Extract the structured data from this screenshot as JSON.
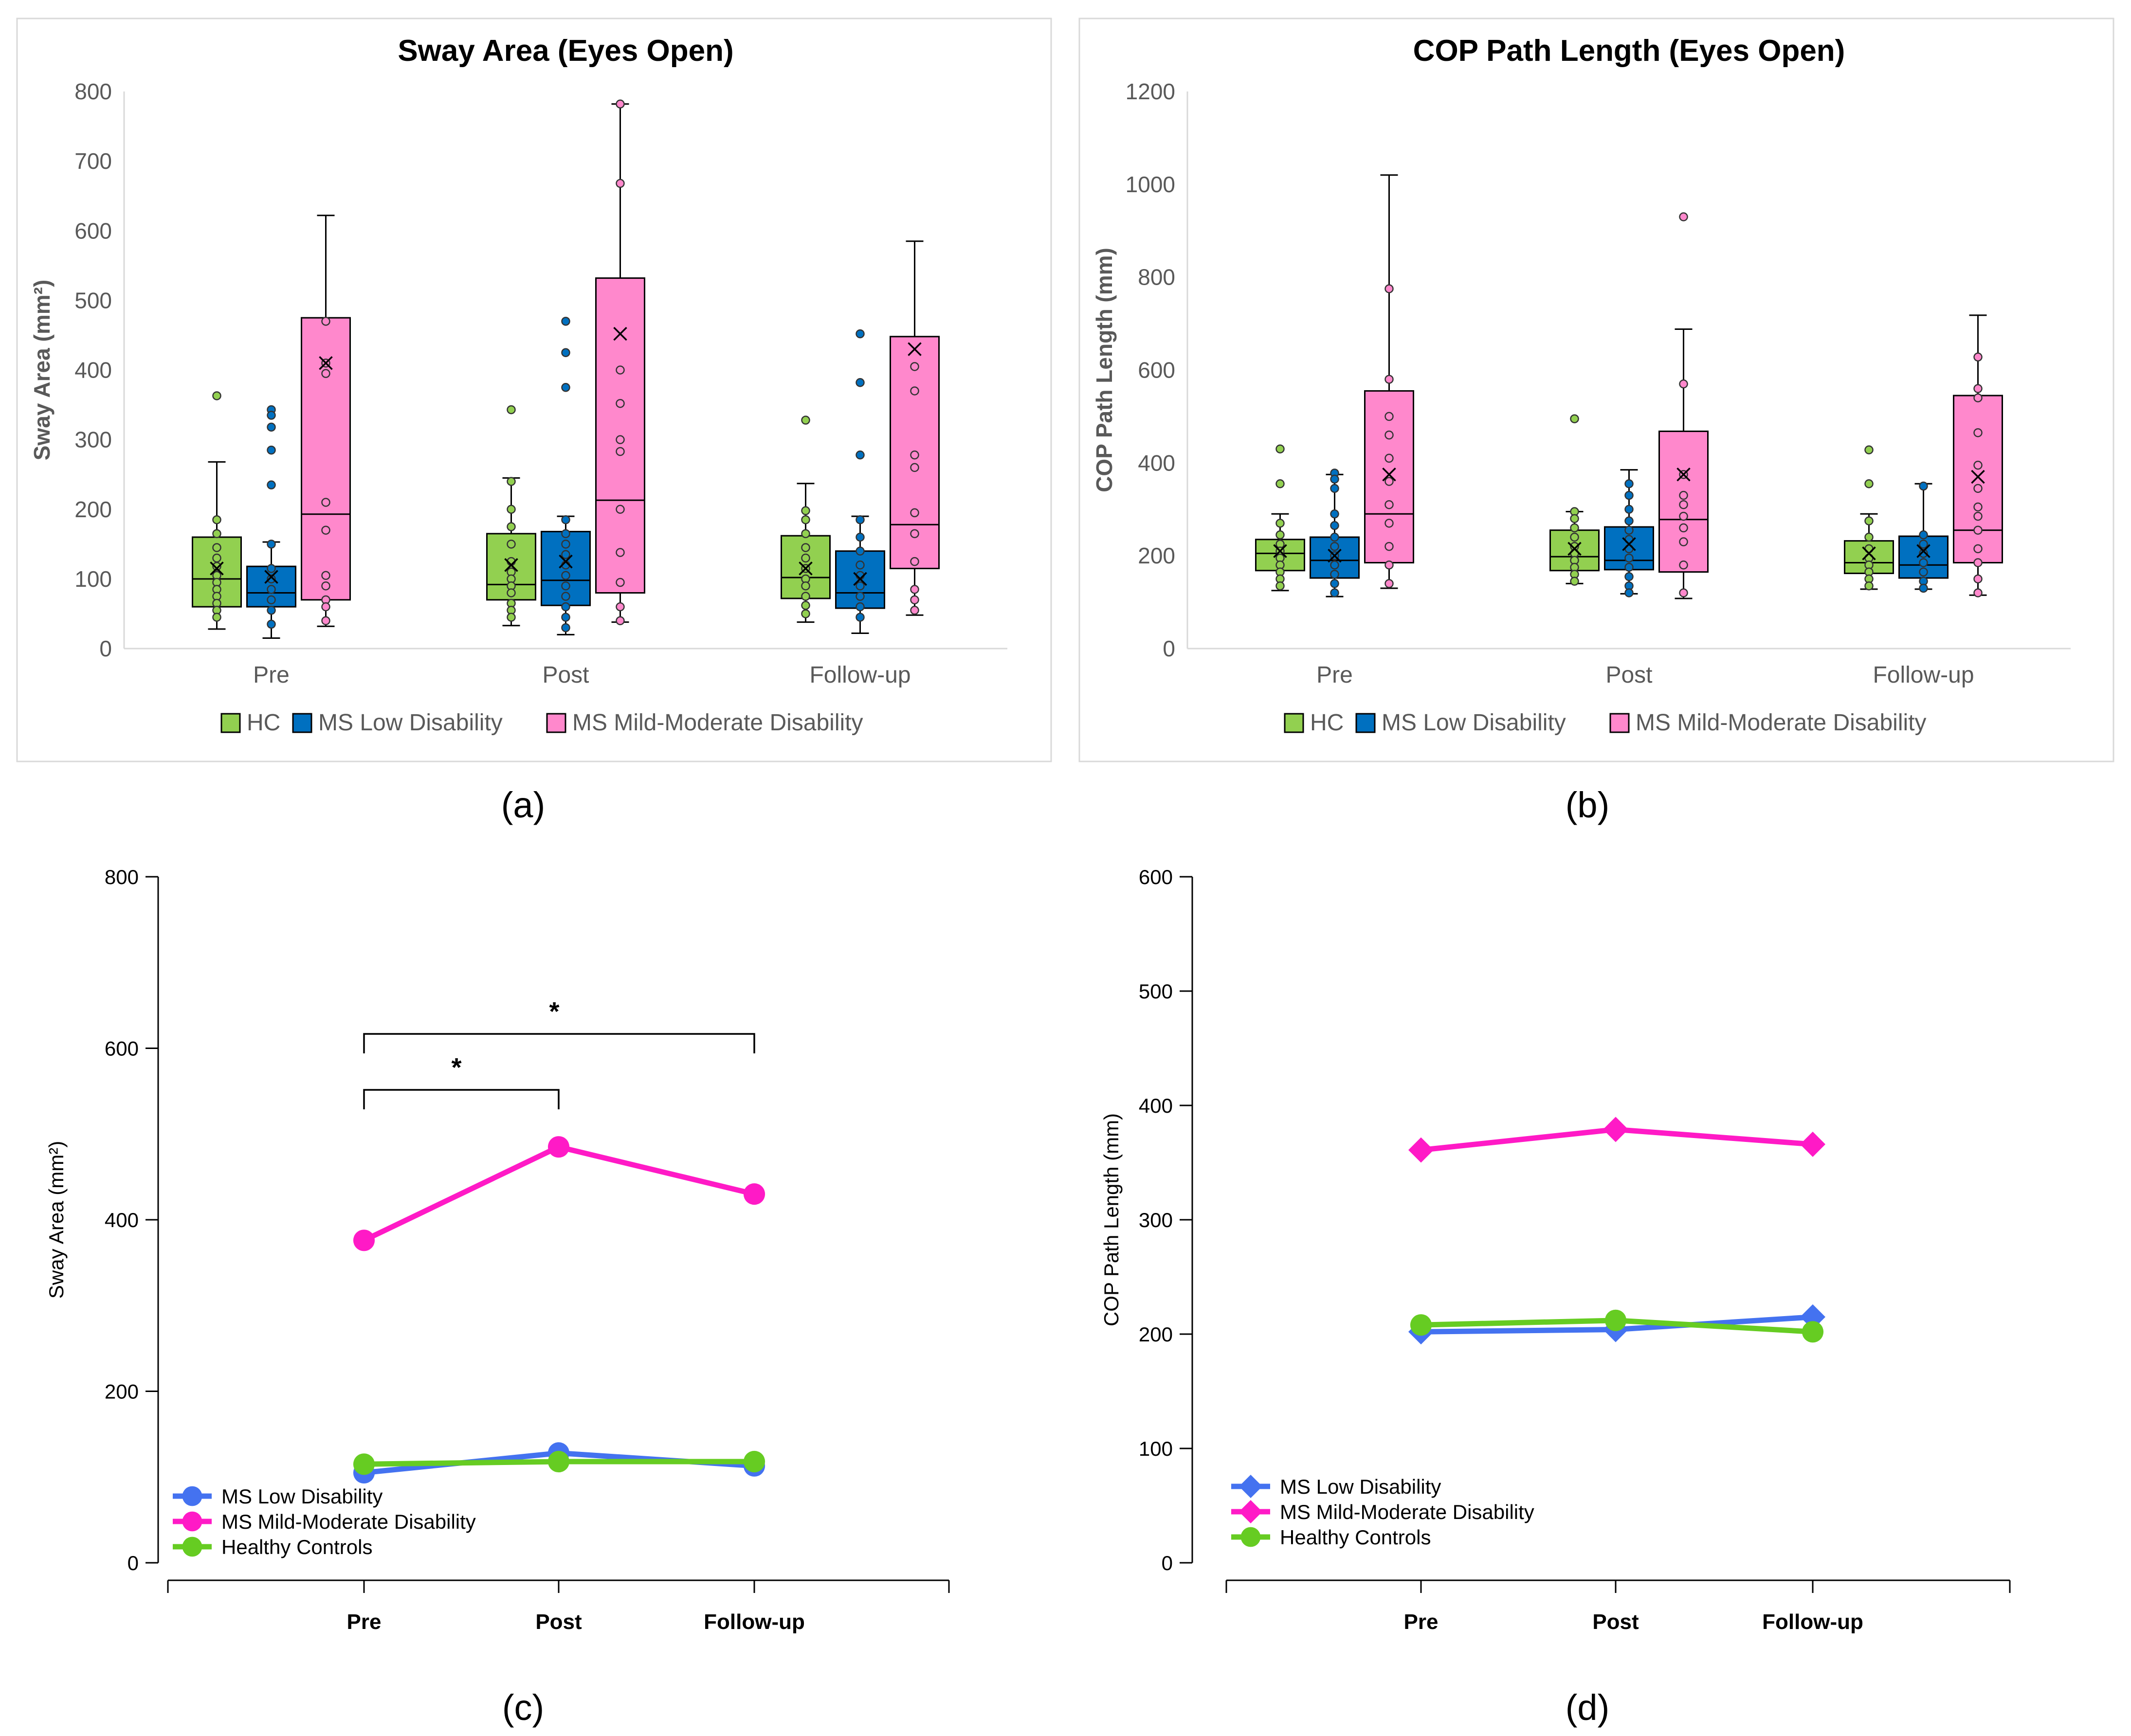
{
  "figure": {
    "panel_labels": [
      "(a)",
      "(b)",
      "(c)",
      "(d)"
    ]
  },
  "colors": {
    "hc_green": "#92D050",
    "ms_low_blue": "#0070C0",
    "ms_mild_pink": "#FF88CC",
    "line_blue": "#4472F0",
    "line_magenta": "#FF1AC6",
    "line_green": "#66CC22",
    "axis_gray": "#595959",
    "grid_gray": "#D9D9D9",
    "frame_gray": "#D9D9D9"
  },
  "chart_data": [
    {
      "id": "a",
      "type": "box",
      "title": "Sway Area (Eyes Open)",
      "ylabel": "Sway Area (mm²)",
      "xlabel": "",
      "ylim": [
        0,
        800
      ],
      "yticks": [
        0,
        100,
        200,
        300,
        400,
        500,
        600,
        700,
        800
      ],
      "categories": [
        "Pre",
        "Post",
        "Follow-up"
      ],
      "legend": {
        "position": "bottom",
        "entries": [
          "HC",
          "MS Low Disability",
          "MS Mild-Moderate Disability"
        ]
      },
      "series": [
        {
          "name": "HC",
          "boxes": [
            {
              "whisker_low": 28,
              "q1": 60,
              "median": 100,
              "q3": 160,
              "whisker_high": 268,
              "mean": 115,
              "points": [
                363,
                185,
                165,
                145,
                130,
                118,
                105,
                95,
                85,
                75,
                65,
                55,
                45
              ]
            },
            {
              "whisker_low": 33,
              "q1": 70,
              "median": 92,
              "q3": 165,
              "whisker_high": 245,
              "mean": 120,
              "points": [
                343,
                240,
                200,
                175,
                150,
                125,
                110,
                100,
                90,
                80,
                65,
                55,
                45
              ]
            },
            {
              "whisker_low": 38,
              "q1": 72,
              "median": 102,
              "q3": 162,
              "whisker_high": 237,
              "mean": 115,
              "points": [
                328,
                198,
                185,
                165,
                145,
                130,
                115,
                100,
                90,
                75,
                62,
                50
              ]
            }
          ]
        },
        {
          "name": "MS Low Disability",
          "boxes": [
            {
              "whisker_low": 15,
              "q1": 60,
              "median": 80,
              "q3": 118,
              "whisker_high": 153,
              "mean": 103,
              "points": [
                343,
                335,
                318,
                285,
                235,
                150,
                115,
                100,
                85,
                70,
                55,
                35
              ]
            },
            {
              "whisker_low": 20,
              "q1": 62,
              "median": 98,
              "q3": 168,
              "whisker_high": 190,
              "mean": 125,
              "points": [
                470,
                425,
                375,
                185,
                165,
                150,
                135,
                120,
                105,
                90,
                75,
                60,
                45,
                30
              ]
            },
            {
              "whisker_low": 22,
              "q1": 58,
              "median": 80,
              "q3": 140,
              "whisker_high": 190,
              "mean": 100,
              "points": [
                452,
                382,
                278,
                185,
                160,
                140,
                120,
                105,
                90,
                75,
                60,
                45
              ]
            }
          ]
        },
        {
          "name": "MS Mild-Moderate Disability",
          "boxes": [
            {
              "whisker_low": 32,
              "q1": 70,
              "median": 193,
              "q3": 475,
              "whisker_high": 622,
              "mean": 410,
              "points": [
                470,
                410,
                395,
                210,
                170,
                105,
                90,
                70,
                60,
                40
              ]
            },
            {
              "whisker_low": 38,
              "q1": 80,
              "median": 213,
              "q3": 532,
              "whisker_high": 782,
              "mean": 452,
              "points": [
                782,
                668,
                400,
                352,
                300,
                283,
                200,
                138,
                95,
                60,
                40
              ]
            },
            {
              "whisker_low": 48,
              "q1": 115,
              "median": 178,
              "q3": 448,
              "whisker_high": 585,
              "mean": 430,
              "points": [
                405,
                370,
                278,
                260,
                195,
                165,
                125,
                85,
                70,
                55
              ]
            }
          ]
        }
      ]
    },
    {
      "id": "b",
      "type": "box",
      "title": "COP Path Length (Eyes Open)",
      "ylabel": "COP Path Length (mm)",
      "xlabel": "",
      "ylim": [
        0,
        1200
      ],
      "yticks": [
        0,
        200,
        400,
        600,
        800,
        1000,
        1200
      ],
      "categories": [
        "Pre",
        "Post",
        "Follow-up"
      ],
      "legend": {
        "position": "bottom",
        "entries": [
          "HC",
          "MS Low Disability",
          "MS Mild-Moderate Disability"
        ]
      },
      "series": [
        {
          "name": "HC",
          "boxes": [
            {
              "whisker_low": 125,
              "q1": 168,
              "median": 205,
              "q3": 235,
              "whisker_high": 290,
              "mean": 210,
              "points": [
                430,
                355,
                270,
                245,
                225,
                210,
                195,
                180,
                165,
                150,
                135
              ]
            },
            {
              "whisker_low": 140,
              "q1": 168,
              "median": 198,
              "q3": 255,
              "whisker_high": 295,
              "mean": 215,
              "points": [
                495,
                295,
                280,
                260,
                240,
                220,
                205,
                190,
                175,
                160,
                145
              ]
            },
            {
              "whisker_low": 128,
              "q1": 162,
              "median": 185,
              "q3": 232,
              "whisker_high": 290,
              "mean": 205,
              "points": [
                428,
                355,
                275,
                240,
                215,
                195,
                180,
                165,
                150,
                135
              ]
            }
          ]
        },
        {
          "name": "MS Low Disability",
          "boxes": [
            {
              "whisker_low": 112,
              "q1": 152,
              "median": 190,
              "q3": 240,
              "whisker_high": 375,
              "mean": 200,
              "points": [
                378,
                365,
                345,
                290,
                265,
                240,
                220,
                200,
                180,
                160,
                140,
                120
              ]
            },
            {
              "whisker_low": 118,
              "q1": 170,
              "median": 190,
              "q3": 262,
              "whisker_high": 385,
              "mean": 225,
              "points": [
                355,
                330,
                300,
                275,
                255,
                235,
                215,
                195,
                175,
                155,
                135,
                120
              ]
            },
            {
              "whisker_low": 128,
              "q1": 152,
              "median": 180,
              "q3": 242,
              "whisker_high": 355,
              "mean": 210,
              "points": [
                350,
                245,
                225,
                205,
                185,
                165,
                145,
                130
              ]
            }
          ]
        },
        {
          "name": "MS Mild-Moderate Disability",
          "boxes": [
            {
              "whisker_low": 130,
              "q1": 185,
              "median": 290,
              "q3": 555,
              "whisker_high": 1020,
              "mean": 375,
              "points": [
                775,
                580,
                500,
                460,
                410,
                360,
                310,
                270,
                220,
                180,
                140
              ]
            },
            {
              "whisker_low": 108,
              "q1": 165,
              "median": 278,
              "q3": 468,
              "whisker_high": 688,
              "mean": 375,
              "points": [
                930,
                570,
                375,
                330,
                310,
                285,
                260,
                230,
                180,
                120
              ]
            },
            {
              "whisker_low": 115,
              "q1": 185,
              "median": 255,
              "q3": 545,
              "whisker_high": 718,
              "mean": 370,
              "points": [
                628,
                560,
                540,
                465,
                395,
                345,
                305,
                285,
                255,
                215,
                185,
                150,
                120
              ]
            }
          ]
        }
      ]
    },
    {
      "id": "c",
      "type": "line",
      "title": "",
      "ylabel": "Sway Area (mm²)",
      "xlabel": "",
      "ylim": [
        0,
        800
      ],
      "yticks": [
        0,
        200,
        400,
        600,
        800
      ],
      "categories": [
        "Pre",
        "Post",
        "Follow-up"
      ],
      "legend": {
        "position": "bottom-left",
        "entries": [
          "MS Low Disability",
          "MS Mild-Moderate Disability",
          "Healthy Controls"
        ]
      },
      "series": [
        {
          "name": "MS Low Disability",
          "values": [
            105,
            128,
            113
          ],
          "marker": "circle"
        },
        {
          "name": "MS Mild-Moderate Disability",
          "values": [
            376,
            485,
            430
          ],
          "marker": "circle"
        },
        {
          "name": "Healthy Controls",
          "values": [
            115,
            118,
            118
          ],
          "marker": "circle"
        }
      ],
      "annotations": [
        {
          "text": "*",
          "from": "Pre",
          "to": "Post"
        },
        {
          "text": "*",
          "from": "Pre",
          "to": "Follow-up"
        }
      ]
    },
    {
      "id": "d",
      "type": "line",
      "title": "",
      "ylabel": "COP Path Length (mm)",
      "xlabel": "",
      "ylim": [
        0,
        600
      ],
      "yticks": [
        0,
        100,
        200,
        300,
        400,
        500,
        600
      ],
      "categories": [
        "Pre",
        "Post",
        "Follow-up"
      ],
      "legend": {
        "position": "bottom-left",
        "entries": [
          "MS Low Disability",
          "MS Mild-Moderate Disability",
          "Healthy Controls"
        ]
      },
      "series": [
        {
          "name": "MS Low Disability",
          "values": [
            202,
            204,
            215
          ],
          "marker": "diamond"
        },
        {
          "name": "MS Mild-Moderate Disability",
          "values": [
            361,
            379,
            366
          ],
          "marker": "diamond"
        },
        {
          "name": "Healthy Controls",
          "values": [
            208,
            212,
            202
          ],
          "marker": "circle"
        }
      ]
    }
  ]
}
